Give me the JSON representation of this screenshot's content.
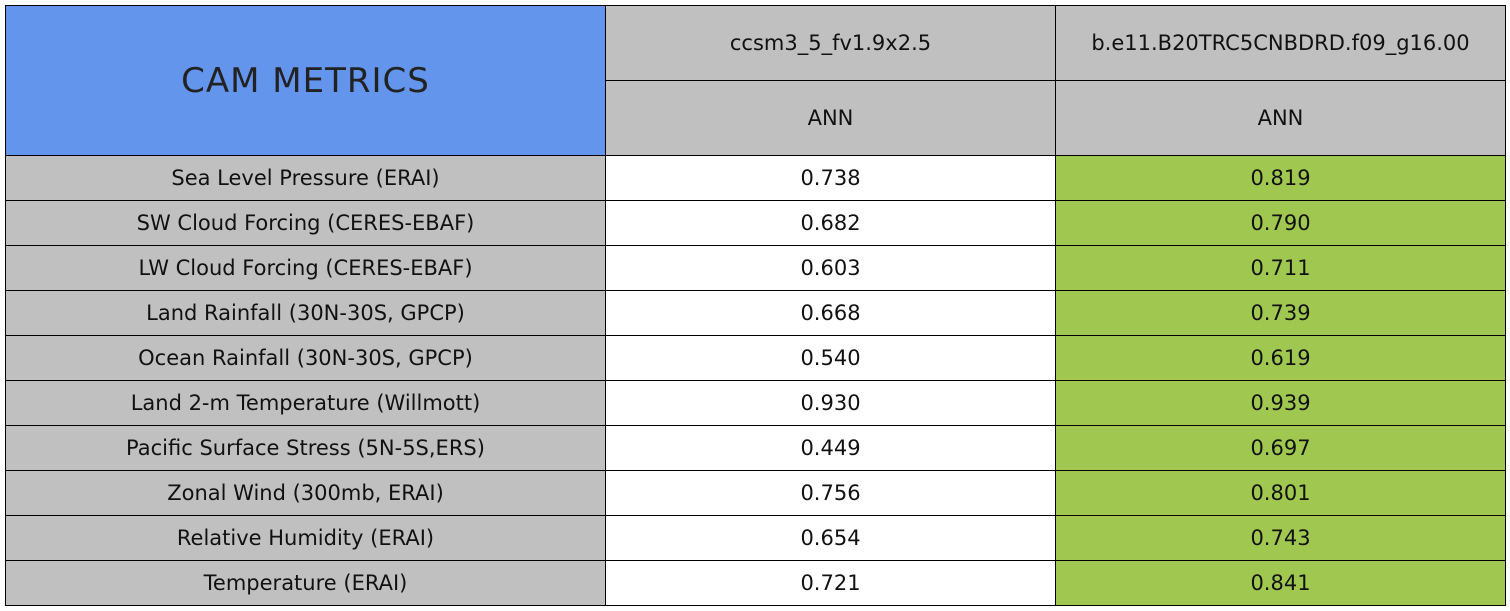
{
  "header": {
    "title": "CAM METRICS",
    "columns": [
      {
        "name": "ccsm3_5_fv1.9x2.5",
        "season": "ANN"
      },
      {
        "name": "b.e11.B20TRC5CNBDRD.f09_g16.00",
        "season": "ANN"
      }
    ]
  },
  "table": {
    "rows": [
      [
        "Sea Level Pressure (ERAI)",
        "0.738",
        "0.819"
      ],
      [
        "SW Cloud Forcing (CERES-EBAF)",
        "0.682",
        "0.790"
      ],
      [
        "LW Cloud Forcing (CERES-EBAF)",
        "0.603",
        "0.711"
      ],
      [
        "Land Rainfall (30N-30S, GPCP)",
        "0.668",
        "0.739"
      ],
      [
        "Ocean Rainfall (30N-30S, GPCP)",
        "0.540",
        "0.619"
      ],
      [
        "Land 2-m Temperature (Willmott)",
        "0.930",
        "0.939"
      ],
      [
        "Pacific Surface Stress (5N-5S,ERS)",
        "0.449",
        "0.697"
      ],
      [
        "Zonal Wind (300mb, ERAI)",
        "0.756",
        "0.801"
      ],
      [
        "Relative Humidity (ERAI)",
        "0.654",
        "0.743"
      ],
      [
        "Temperature (ERAI)",
        "0.721",
        "0.841"
      ]
    ]
  }
}
